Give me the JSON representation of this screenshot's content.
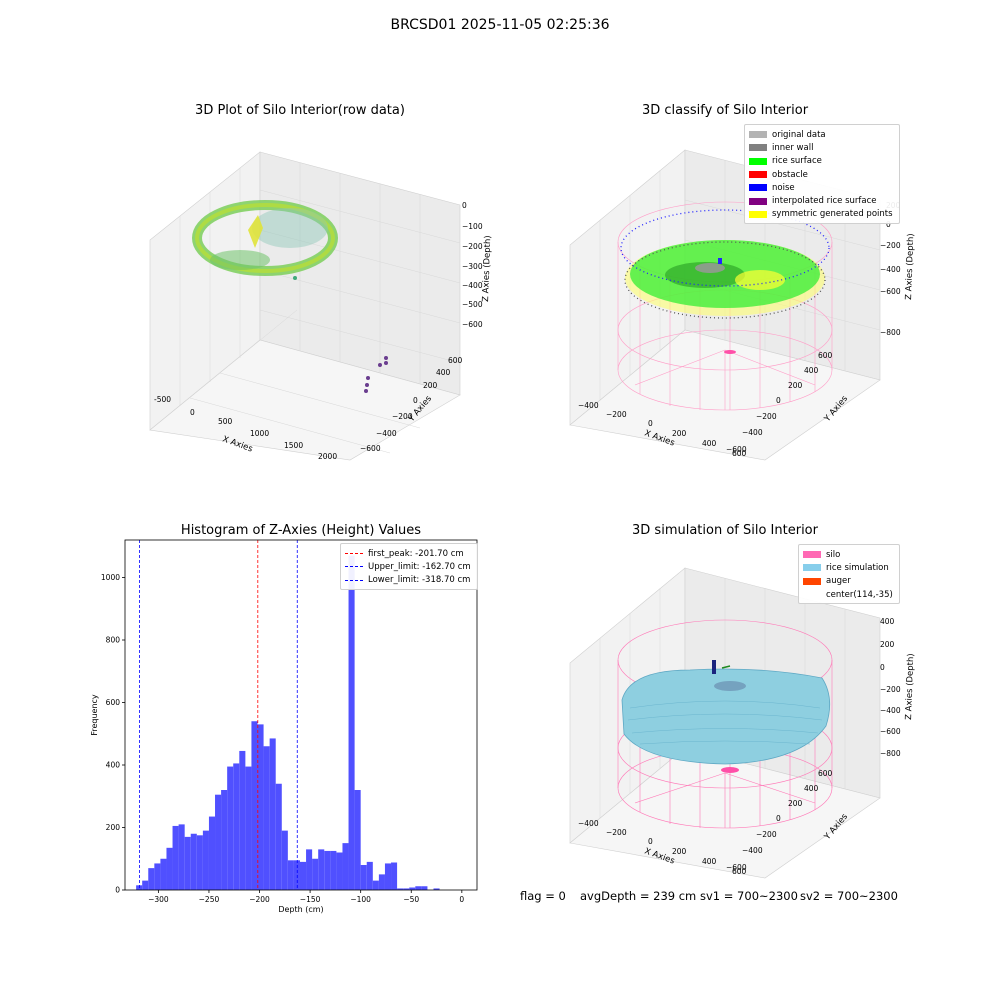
{
  "figure": {
    "suptitle": "BRCSD01 2025-11-05 02:25:36",
    "footer": {
      "flag": "flag = 0",
      "avg_depth": "avgDepth = 239 cm",
      "sv1": "sv1 = 700~2300",
      "sv2": "sv2 = 700~2300"
    }
  },
  "panels": {
    "raw": {
      "title": "3D Plot of Silo Interior(row data)",
      "xlabel": "X Axies",
      "ylabel": "Y Axies",
      "zlabel": "Z Axies (Depth)",
      "xticks": [
        "-500",
        "0",
        "500",
        "1000",
        "1500",
        "2000"
      ],
      "yticks": [
        "600",
        "400",
        "200",
        "0",
        "−200",
        "−400",
        "−600"
      ],
      "zticks": [
        "0",
        "−100",
        "−200",
        "−300",
        "−400",
        "−500",
        "−600"
      ]
    },
    "classify": {
      "title": "3D classify of Silo Interior",
      "xlabel": "X Axies",
      "ylabel": "Y Axies",
      "zlabel": "Z Axies (Depth)",
      "xticks": [
        "−400",
        "−200",
        "0",
        "200",
        "400",
        "600"
      ],
      "yticks": [
        "600",
        "400",
        "200",
        "0",
        "−200",
        "−400",
        "−600"
      ],
      "zticks": [
        "200",
        "0",
        "−200",
        "−400",
        "−600",
        "−800"
      ],
      "legend": [
        {
          "label": "original data",
          "color": "#b3b3b3"
        },
        {
          "label": "inner wall",
          "color": "#808080"
        },
        {
          "label": "rice surface",
          "color": "#00ff00"
        },
        {
          "label": "obstacle",
          "color": "#ff0000"
        },
        {
          "label": "noise",
          "color": "#0000ff"
        },
        {
          "label": "interpolated rice surface",
          "color": "#800080"
        },
        {
          "label": "symmetric generated points",
          "color": "#ffff00"
        }
      ]
    },
    "simulation": {
      "title": "3D simulation of Silo Interior",
      "xlabel": "X Axies",
      "ylabel": "Y Axies",
      "zlabel": "Z Axies (Depth)",
      "xticks": [
        "−400",
        "−200",
        "0",
        "200",
        "400",
        "600"
      ],
      "yticks": [
        "600",
        "400",
        "200",
        "0",
        "−200",
        "−400",
        "−600"
      ],
      "zticks": [
        "400",
        "200",
        "0",
        "−200",
        "−400",
        "−600",
        "−800"
      ],
      "legend": [
        {
          "label": "silo",
          "color": "#ff69b4"
        },
        {
          "label": "rice simulation",
          "color": "#87ceeb"
        },
        {
          "label": "auger",
          "color": "#ff4500"
        },
        {
          "label": "center(114,-35)",
          "color": ""
        }
      ]
    }
  },
  "chart_data": {
    "type": "bar",
    "title": "Histogram of Z-Axies (Height) Values",
    "xlabel": "Depth (cm)",
    "ylabel": "Frequency",
    "xlim": [
      -333,
      15
    ],
    "ylim": [
      0,
      1120
    ],
    "xticks": [
      -300,
      -250,
      -200,
      -150,
      -100,
      -50,
      0
    ],
    "yticks": [
      0,
      200,
      400,
      600,
      800,
      1000
    ],
    "bar_color": "#5050ff",
    "bin_start": -322,
    "bin_width": 6,
    "values": [
      15,
      30,
      70,
      85,
      100,
      135,
      205,
      210,
      170,
      180,
      175,
      190,
      235,
      305,
      320,
      395,
      405,
      445,
      395,
      540,
      530,
      460,
      485,
      340,
      190,
      95,
      95,
      90,
      130,
      100,
      130,
      125,
      125,
      120,
      150,
      1070,
      320,
      80,
      90,
      30,
      50,
      85,
      88,
      5,
      5,
      8,
      12,
      12,
      0,
      5
    ],
    "vlines": [
      {
        "label": "first_peak: -201.70 cm",
        "x": -201.7,
        "color": "#ff0000"
      },
      {
        "label": "Upper_limit: -162.70 cm",
        "x": -162.7,
        "color": "#0000ff"
      },
      {
        "label": "Lower_limit: -318.70 cm",
        "x": -318.7,
        "color": "#0000ff"
      }
    ]
  }
}
